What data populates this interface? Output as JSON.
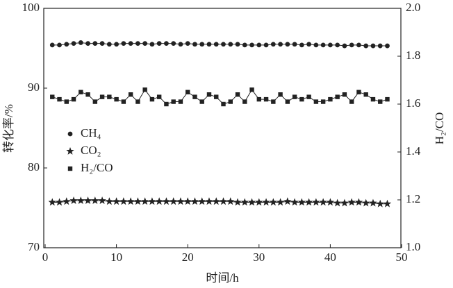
{
  "chart_data": {
    "type": "line",
    "xlabel": "时间/h",
    "ylabel": "转化率/%",
    "y2label": "H₂/CO",
    "xlim": [
      0,
      50
    ],
    "xticks": [
      0,
      10,
      20,
      30,
      40,
      50
    ],
    "ylim": [
      70,
      100
    ],
    "yticks": [
      70,
      80,
      90,
      100
    ],
    "y2lim": [
      1.0,
      2.0
    ],
    "y2ticks": [
      {
        "value": 1.0,
        "label": "1.0"
      },
      {
        "value": 1.2,
        "label": "1.2"
      },
      {
        "value": 1.4,
        "label": "1.4"
      },
      {
        "value": 1.6,
        "label": "1.6"
      },
      {
        "value": 1.8,
        "label": "1.8"
      },
      {
        "value": 2.0,
        "label": "2.0"
      }
    ],
    "legend": "center left",
    "grid": false,
    "x": [
      1,
      2,
      3,
      4,
      5,
      6,
      7,
      8,
      9,
      10,
      11,
      12,
      13,
      14,
      15,
      16,
      17,
      18,
      19,
      20,
      21,
      22,
      23,
      24,
      25,
      26,
      27,
      28,
      29,
      30,
      31,
      32,
      33,
      34,
      35,
      36,
      37,
      38,
      39,
      40,
      41,
      42,
      43,
      44,
      45,
      46,
      47,
      48
    ],
    "series": [
      {
        "name": "CH₄",
        "color": "#222222",
        "marker": "circle",
        "values": [
          95.4,
          95.4,
          95.5,
          95.6,
          95.7,
          95.6,
          95.6,
          95.6,
          95.5,
          95.5,
          95.6,
          95.6,
          95.6,
          95.6,
          95.5,
          95.6,
          95.6,
          95.6,
          95.5,
          95.6,
          95.5,
          95.5,
          95.5,
          95.5,
          95.5,
          95.5,
          95.5,
          95.4,
          95.4,
          95.4,
          95.4,
          95.5,
          95.5,
          95.5,
          95.5,
          95.4,
          95.5,
          95.4,
          95.4,
          95.4,
          95.4,
          95.3,
          95.4,
          95.4,
          95.3,
          95.3,
          95.3,
          95.3
        ]
      },
      {
        "name": "CO₂",
        "color": "#222222",
        "marker": "star",
        "values": [
          75.7,
          75.7,
          75.8,
          75.9,
          75.9,
          75.9,
          75.9,
          75.9,
          75.8,
          75.8,
          75.8,
          75.8,
          75.8,
          75.8,
          75.8,
          75.8,
          75.8,
          75.8,
          75.8,
          75.8,
          75.8,
          75.8,
          75.8,
          75.8,
          75.8,
          75.8,
          75.7,
          75.7,
          75.7,
          75.7,
          75.7,
          75.7,
          75.7,
          75.8,
          75.7,
          75.7,
          75.7,
          75.7,
          75.7,
          75.7,
          75.6,
          75.6,
          75.7,
          75.7,
          75.6,
          75.6,
          75.5,
          75.5
        ]
      },
      {
        "name": "H₂/CO",
        "color": "#222222",
        "marker": "square",
        "axis": "y2",
        "values": [
          1.63,
          1.62,
          1.61,
          1.62,
          1.65,
          1.64,
          1.61,
          1.63,
          1.63,
          1.62,
          1.61,
          1.64,
          1.61,
          1.66,
          1.62,
          1.63,
          1.6,
          1.61,
          1.61,
          1.65,
          1.63,
          1.61,
          1.64,
          1.63,
          1.6,
          1.61,
          1.64,
          1.61,
          1.66,
          1.62,
          1.62,
          1.61,
          1.64,
          1.61,
          1.63,
          1.62,
          1.63,
          1.61,
          1.61,
          1.62,
          1.63,
          1.64,
          1.61,
          1.65,
          1.64,
          1.62,
          1.61,
          1.62
        ]
      }
    ]
  }
}
